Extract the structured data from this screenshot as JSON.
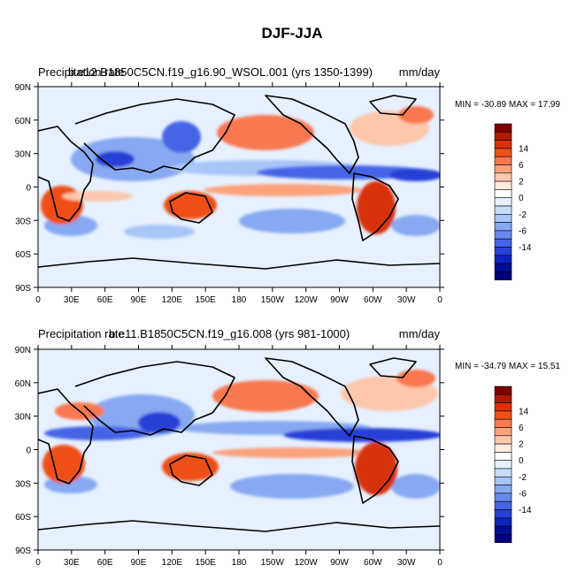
{
  "figure": {
    "title": "DJF-JJA"
  },
  "colorbar": {
    "levels": [
      14,
      6,
      2,
      0,
      -2,
      -6,
      -14
    ],
    "tick_labels": [
      "14",
      "6",
      "2",
      "0",
      "-2",
      "-6",
      "-14"
    ],
    "colors": [
      "#7b0000",
      "#b01800",
      "#d83008",
      "#ee5018",
      "#f87850",
      "#fca27c",
      "#fdc8ab",
      "#feeade",
      "#ffffff",
      "#e6f0ff",
      "#c6dcfb",
      "#a7c5f7",
      "#86a9f2",
      "#6689ee",
      "#4565e6",
      "#2741d6",
      "#0d22bd",
      "#000d95",
      "#00007a"
    ]
  },
  "chart_data": [
    {
      "type": "heatmap",
      "panel": "top",
      "title_left_a": "Precipitation rate",
      "title_left_b": "b.e12.B1850C5CN.f19_g16.90_WSOL.001 (yrs 1350-1399)",
      "title_right": "mm/day",
      "min_max_text": "MIN = -30.89 MAX =  17.99",
      "min": -30.89,
      "max": 17.99,
      "x_ticks": [
        "0",
        "30E",
        "60E",
        "90E",
        "120E",
        "150E",
        "180",
        "150W",
        "120W",
        "90W",
        "60W",
        "30W",
        "0"
      ],
      "y_ticks": [
        "90N",
        "60N",
        "30N",
        "0",
        "30S",
        "60S",
        "90S"
      ],
      "xlim": [
        0,
        360
      ],
      "ylim": [
        -90,
        90
      ]
    },
    {
      "type": "heatmap",
      "panel": "bottom",
      "title_left_a": "Precipitation rate",
      "title_left_b": "b.e11.B1850C5CN.f19_g16.008 (yrs 981-1000)",
      "title_right": "mm/day",
      "min_max_text": "MIN = -34.79 MAX =  15.51",
      "min": -34.79,
      "max": 15.51,
      "x_ticks": [
        "0",
        "30E",
        "60E",
        "90E",
        "120E",
        "150E",
        "180",
        "150W",
        "120W",
        "90W",
        "60W",
        "30W",
        "0"
      ],
      "y_ticks": [
        "90N",
        "60N",
        "30N",
        "0",
        "30S",
        "60S",
        "90S"
      ],
      "xlim": [
        0,
        360
      ],
      "ylim": [
        -90,
        90
      ]
    }
  ]
}
